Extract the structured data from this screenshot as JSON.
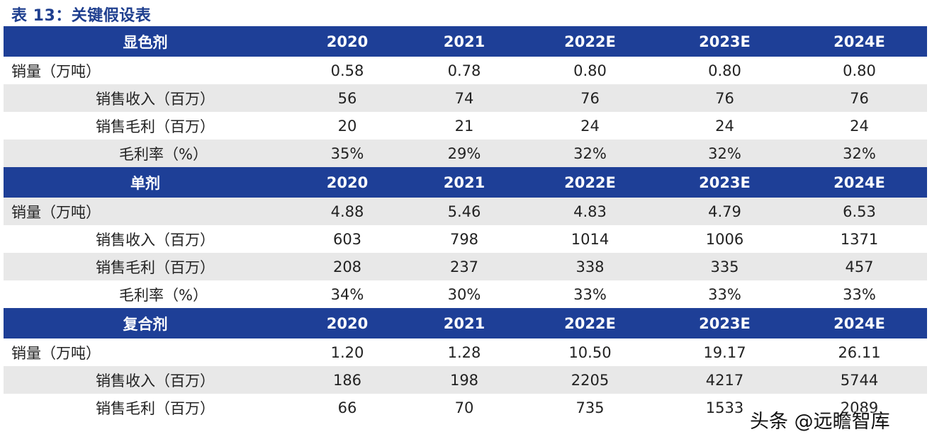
{
  "title": "表 13：关键假设表",
  "sections": [
    {
      "header": [
        "显色剂",
        "2020",
        "2021",
        "2022E",
        "2023E",
        "2024E"
      ],
      "rows": [
        [
          "销量（万吨）",
          "0.58",
          "0.78",
          "0.80",
          "0.80",
          "0.80"
        ],
        [
          "销售收入（百万）",
          "56",
          "74",
          "76",
          "76",
          "76"
        ],
        [
          "销售毛利（百万）",
          "20",
          "21",
          "24",
          "24",
          "24"
        ],
        [
          "毛利率（%）",
          "35%",
          "29%",
          "32%",
          "32%",
          "32%"
        ]
      ]
    },
    {
      "header": [
        "单剂",
        "2020",
        "2021",
        "2022E",
        "2023E",
        "2024E"
      ],
      "rows": [
        [
          "销量（万吨）",
          "4.88",
          "5.46",
          "4.83",
          "4.79",
          "6.53"
        ],
        [
          "销售收入（百万）",
          "603",
          "798",
          "1014",
          "1006",
          "1371"
        ],
        [
          "销售毛利（百万）",
          "208",
          "237",
          "338",
          "335",
          "457"
        ],
        [
          "毛利率（%）",
          "34%",
          "30%",
          "33%",
          "33%",
          "33%"
        ]
      ]
    },
    {
      "header": [
        "复合剂",
        "2020",
        "2021",
        "2022E",
        "2023E",
        "2024E"
      ],
      "rows": [
        [
          "销量（万吨）",
          "1.20",
          "1.28",
          "10.50",
          "19.17",
          "26.11"
        ],
        [
          "销售收入（百万）",
          "186",
          "198",
          "2205",
          "4217",
          "5744"
        ],
        [
          "销售毛利（百万）",
          "66",
          "70",
          "735",
          "1533",
          "2089"
        ]
      ]
    }
  ],
  "watermark": "头条 @远瞻智库"
}
